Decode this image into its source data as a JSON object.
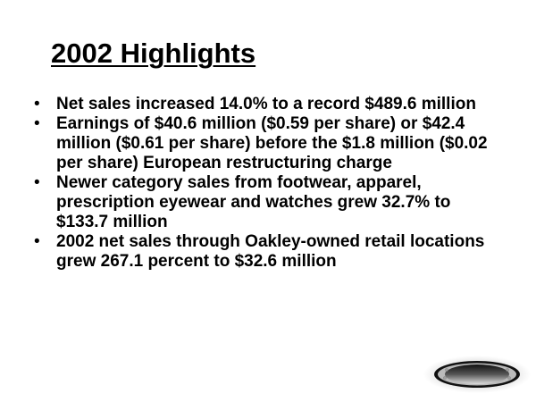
{
  "slide": {
    "title": "2002 Highlights",
    "bullets": [
      "Net sales increased 14.0% to a record $489.6 million",
      "Earnings of $40.6 million ($0.59 per share) or $42.4 million ($0.61 per share) before the $1.8 million ($0.02 per share) European restructuring charge",
      "Newer category sales from footwear, apparel, prescription eyewear and watches grew 32.7% to $133.7 million",
      "2002 net sales through Oakley-owned retail locations grew 267.1 percent to $32.6 million"
    ],
    "bullet_glyph": "•",
    "logo_icon": "oakley-ellipse-logo-icon"
  }
}
